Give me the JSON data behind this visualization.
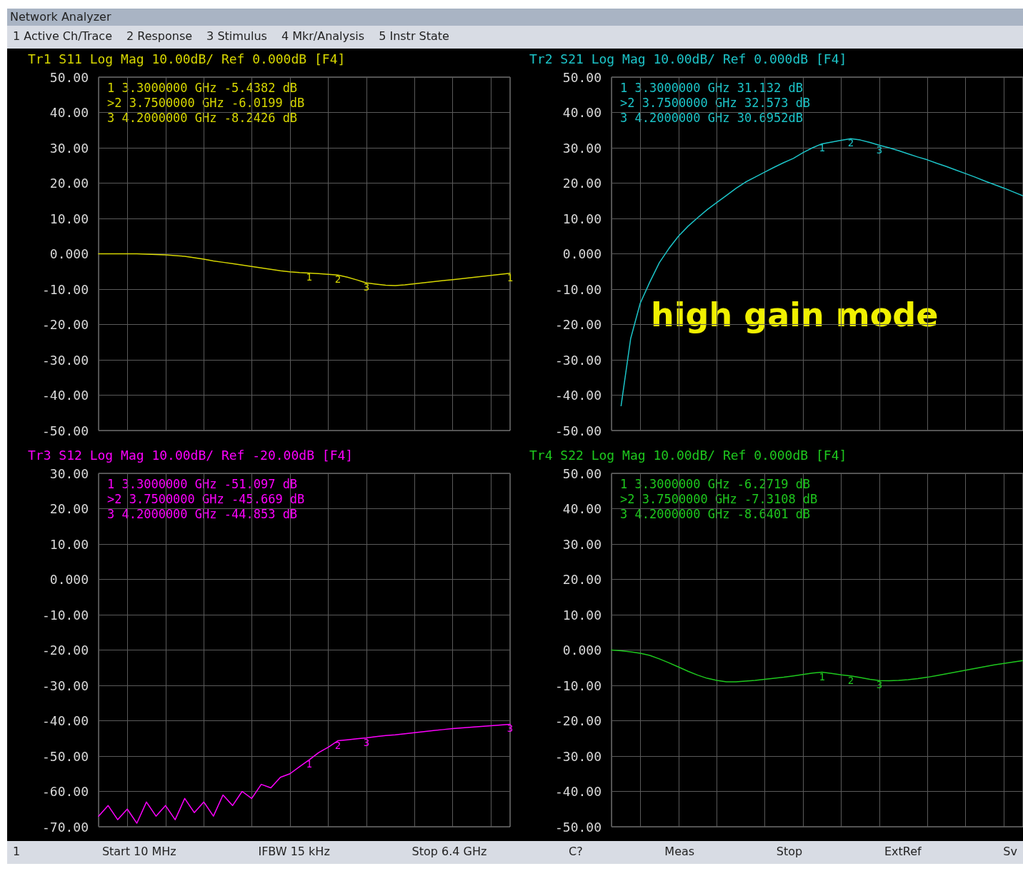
{
  "chart_data": [
    {
      "type": "other",
      "title": "Network Analyzer",
      "annotations": [
        "1 Active Ch/Trace",
        "2 Response",
        "3 Stimulus",
        "4 Mkr/Analysis",
        "5 Instr State"
      ]
    },
    {
      "type": "line",
      "title": "Tr1 S11 Log Mag 10.00dB/ Ref 0.000dB [F4]",
      "grid": true,
      "marker": "none",
      "line_style": "solid",
      "tick_labels": "y",
      "categories": [
        null,
        null,
        null,
        null,
        null,
        null,
        null,
        null,
        null,
        null,
        null,
        null,
        null,
        null,
        null,
        null,
        null,
        null,
        null,
        null,
        null,
        null,
        null,
        null,
        null,
        null,
        null,
        null,
        null,
        null,
        null,
        null,
        null,
        null,
        null,
        null,
        null,
        null,
        null,
        null,
        null,
        null,
        null,
        null
      ],
      "ylim": [
        -50,
        50
      ],
      "yticks": [
        {
          "value": 50,
          "label": "50.00"
        },
        {
          "value": 40,
          "label": "40.00"
        },
        {
          "value": 30,
          "label": "30.00"
        },
        {
          "value": 20,
          "label": "20.00"
        },
        {
          "value": 10,
          "label": "10.00"
        },
        {
          "value": 0,
          "label": "0.000"
        },
        {
          "value": -10,
          "label": "-10.00"
        },
        {
          "value": -20,
          "label": "-20.00"
        },
        {
          "value": -30,
          "label": "-30.00"
        },
        {
          "value": -40,
          "label": "-40.00"
        },
        {
          "value": -50,
          "label": "-50.00"
        }
      ],
      "series": [
        {
          "color": "#d6d600",
          "values": [
            0,
            0,
            0,
            0,
            0,
            -0.1,
            -0.2,
            -0.3,
            -0.5,
            -0.7,
            -1.1,
            -1.5,
            -2,
            -2.4,
            -2.8,
            -3.2,
            -3.6,
            -4,
            -4.4,
            -4.8,
            -5.1,
            -5.3,
            -5.4382,
            -5.6,
            -5.8,
            -6.0199,
            -6.6,
            -7.4,
            -8.2426,
            -8.6,
            -8.9,
            -9,
            -8.8,
            -8.5,
            -8.2,
            -7.9,
            -7.6,
            -7.3,
            -7,
            -6.7,
            -6.4,
            -6.1,
            -5.8,
            -5.5
          ]
        }
      ],
      "annotations": [
        "1 3.3000000 GHz -5.4382 dB",
        ">2 3.7500000 GHz -6.0199 dB",
        "3 4.2000000 GHz -8.2426 dB",
        {
          "text": "1",
          "y": -5.4382
        },
        {
          "text": "2",
          "y": -6.0199
        },
        {
          "text": "3",
          "y": -8.2426
        },
        {
          "text": "1",
          "y": -5.5
        }
      ]
    },
    {
      "type": "line",
      "title": "Tr2 S21 Log Mag 10.00dB/ Ref 0.000dB [F4]",
      "subtitle": "high gain mode",
      "grid": true,
      "marker": "none",
      "line_style": "solid",
      "tick_labels": "y",
      "categories": [
        null,
        null,
        null,
        null,
        null,
        null,
        null,
        null,
        null,
        null,
        null,
        null,
        null,
        null,
        null,
        null,
        null,
        null,
        null,
        null,
        null,
        null,
        null,
        null,
        null,
        null,
        null,
        null,
        null,
        null,
        null,
        null,
        null,
        null,
        null,
        null,
        null,
        null,
        null,
        null,
        null,
        null,
        null,
        null
      ],
      "ylim": [
        -50,
        50
      ],
      "yticks": [
        {
          "value": 50,
          "label": "50.00"
        },
        {
          "value": 40,
          "label": "40.00"
        },
        {
          "value": 30,
          "label": "30.00"
        },
        {
          "value": 20,
          "label": "20.00"
        },
        {
          "value": 10,
          "label": "10.00"
        },
        {
          "value": 0,
          "label": "0.000"
        },
        {
          "value": -10,
          "label": "-10.00"
        },
        {
          "value": -20,
          "label": "-20.00"
        },
        {
          "value": -30,
          "label": "-30.00"
        },
        {
          "value": -40,
          "label": "-40.00"
        },
        {
          "value": -50,
          "label": "-50.00"
        }
      ],
      "series": [
        {
          "color": "#1cc4c8",
          "values": [
            null,
            -43,
            -24,
            -14,
            -8,
            -2.5,
            1.5,
            5,
            7.8,
            10.2,
            12.5,
            14.5,
            16.5,
            18.5,
            20.3,
            21.7,
            23.1,
            24.5,
            25.8,
            27,
            28.6,
            30,
            31.132,
            31.6,
            32.1,
            32.573,
            32.2,
            31.5,
            30.6952,
            30,
            29.2,
            28.3,
            27.4,
            26.6,
            25.6,
            24.7,
            23.7,
            22.7,
            21.7,
            20.6,
            19.6,
            18.6,
            17.5,
            16.4
          ]
        }
      ],
      "annotations": [
        "1 3.3000000 GHz 31.132 dB",
        ">2 3.7500000 GHz 32.573 dB",
        "3 4.2000000 GHz 30.6952dB",
        {
          "text": "1",
          "y": 31.132
        },
        {
          "text": "2",
          "y": 32.573
        },
        {
          "text": "3",
          "y": 30.6952
        }
      ]
    },
    {
      "type": "line",
      "title": "Tr3 S12 Log Mag 10.00dB/ Ref -20.00dB [F4]",
      "grid": true,
      "marker": "none",
      "line_style": "solid",
      "tick_labels": "y",
      "categories": [
        null,
        null,
        null,
        null,
        null,
        null,
        null,
        null,
        null,
        null,
        null,
        null,
        null,
        null,
        null,
        null,
        null,
        null,
        null,
        null,
        null,
        null,
        null,
        null,
        null,
        null,
        null,
        null,
        null,
        null,
        null,
        null,
        null,
        null,
        null,
        null,
        null,
        null,
        null,
        null,
        null,
        null,
        null,
        null
      ],
      "ylim": [
        -70,
        30
      ],
      "yticks": [
        {
          "value": 30,
          "label": "30.00"
        },
        {
          "value": 20,
          "label": "20.00"
        },
        {
          "value": 10,
          "label": "10.00"
        },
        {
          "value": 0,
          "label": "0.000"
        },
        {
          "value": -10,
          "label": "-10.00"
        },
        {
          "value": -20,
          "label": "-20.00"
        },
        {
          "value": -30,
          "label": "-30.00"
        },
        {
          "value": -40,
          "label": "-40.00"
        },
        {
          "value": -50,
          "label": "-50.00"
        },
        {
          "value": -60,
          "label": "-60.00"
        },
        {
          "value": -70,
          "label": "-70.00"
        }
      ],
      "series": [
        {
          "color": "#ff00ff",
          "values": [
            -67,
            -64,
            -68,
            -65,
            -69,
            -63,
            -67,
            -64,
            -68,
            -62,
            -66,
            -63,
            -67,
            -61,
            -64,
            -60,
            -62,
            -58,
            -59,
            -56,
            -55,
            -53,
            -51.097,
            -49,
            -47.5,
            -45.669,
            -45.4,
            -45.1,
            -44.853,
            -44.5,
            -44.2,
            -44,
            -43.7,
            -43.4,
            -43.1,
            -42.8,
            -42.5,
            -42.2,
            -42,
            -41.8,
            -41.6,
            -41.4,
            -41.2,
            -41
          ]
        }
      ],
      "annotations": [
        "1 3.3000000 GHz -51.097 dB",
        ">2 3.7500000 GHz -45.669 dB",
        "3 4.2000000 GHz -44.853 dB",
        {
          "text": "1",
          "y": -51.097
        },
        {
          "text": "2",
          "y": -45.669
        },
        {
          "text": "3",
          "y": -44.853
        },
        {
          "text": "3",
          "y": -41
        }
      ]
    },
    {
      "type": "line",
      "title": "Tr4 S22 Log Mag 10.00dB/ Ref 0.000dB [F4]",
      "grid": true,
      "marker": "none",
      "line_style": "solid",
      "tick_labels": "y",
      "categories": [
        null,
        null,
        null,
        null,
        null,
        null,
        null,
        null,
        null,
        null,
        null,
        null,
        null,
        null,
        null,
        null,
        null,
        null,
        null,
        null,
        null,
        null,
        null,
        null,
        null,
        null,
        null,
        null,
        null,
        null,
        null,
        null,
        null,
        null,
        null,
        null,
        null,
        null,
        null,
        null,
        null,
        null,
        null,
        null
      ],
      "ylim": [
        -50,
        50
      ],
      "yticks": [
        {
          "value": 50,
          "label": "50.00"
        },
        {
          "value": 40,
          "label": "40.00"
        },
        {
          "value": 30,
          "label": "30.00"
        },
        {
          "value": 20,
          "label": "20.00"
        },
        {
          "value": 10,
          "label": "10.00"
        },
        {
          "value": 0,
          "label": "0.000"
        },
        {
          "value": -10,
          "label": "-10.00"
        },
        {
          "value": -20,
          "label": "-20.00"
        },
        {
          "value": -30,
          "label": "-30.00"
        },
        {
          "value": -40,
          "label": "-40.00"
        },
        {
          "value": -50,
          "label": "-50.00"
        }
      ],
      "series": [
        {
          "color": "#1ec81e",
          "values": [
            0,
            -0.2,
            -0.5,
            -0.9,
            -1.5,
            -2.5,
            -3.6,
            -4.8,
            -6,
            -7.1,
            -8,
            -8.6,
            -9,
            -9,
            -8.8,
            -8.6,
            -8.3,
            -8,
            -7.7,
            -7.3,
            -6.9,
            -6.5,
            -6.2719,
            -6.6,
            -7,
            -7.3108,
            -7.8,
            -8.3,
            -8.6401,
            -8.7,
            -8.6,
            -8.4,
            -8.1,
            -7.7,
            -7.2,
            -6.7,
            -6.2,
            -5.7,
            -5.2,
            -4.7,
            -4.2,
            -3.8,
            -3.4,
            -3
          ]
        }
      ],
      "annotations": [
        "1 3.3000000 GHz -6.2719 dB",
        ">2 3.7500000 GHz -7.3108 dB",
        "3 4.2000000 GHz -8.6401 dB",
        {
          "text": "1",
          "y": -6.2719
        },
        {
          "text": "2",
          "y": -7.3108
        },
        {
          "text": "3",
          "y": -8.6401
        }
      ]
    },
    {
      "type": "other",
      "annotations": [
        "1",
        "Start 10 MHz",
        "IFBW 15 kHz",
        "Stop 6.4 GHz",
        "C?",
        "Meas",
        "Stop",
        "ExtRef",
        "Sv"
      ]
    }
  ]
}
